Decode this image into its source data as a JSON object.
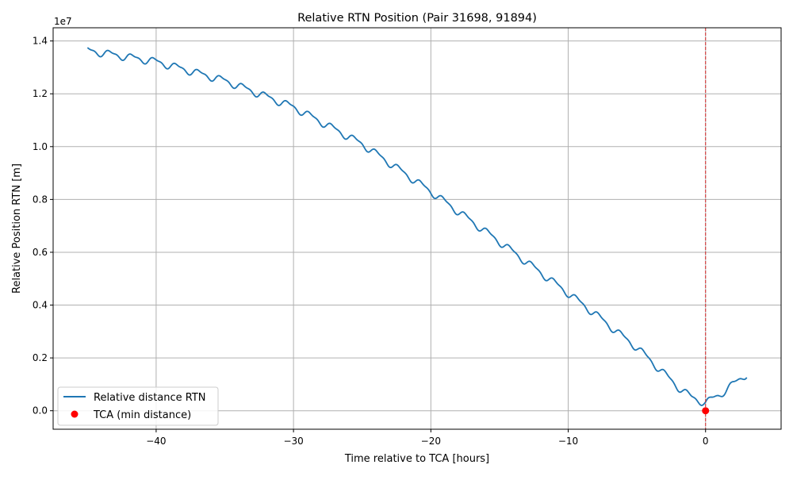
{
  "chart_data": {
    "type": "line",
    "title": "Relative RTN Position (Pair 31698, 91894)",
    "xlabel": "Time relative to TCA [hours]",
    "ylabel": "Relative Position RTN [m]",
    "y_offset_label": "1e7",
    "xlim": [
      -47.5,
      5.5
    ],
    "ylim": [
      -0.07,
      1.45
    ],
    "x_ticks": [
      -40,
      -30,
      -20,
      -10,
      0
    ],
    "x_tick_labels": [
      "−40",
      "−30",
      "−20",
      "−10",
      "0"
    ],
    "y_ticks": [
      0.0,
      0.2,
      0.4,
      0.6,
      0.8,
      1.0,
      1.2,
      1.4
    ],
    "y_tick_labels": [
      "0.0",
      "0.2",
      "0.4",
      "0.6",
      "0.8",
      "1.0",
      "1.2",
      "1.4"
    ],
    "grid": true,
    "legend_position": "lower-left",
    "series": [
      {
        "name": "Relative distance RTN",
        "color": "#1f77b4",
        "x_start": -45,
        "x_end": 3,
        "trend": [
          [
            -45,
            1.364
          ],
          [
            -40,
            1.322
          ],
          [
            -35,
            1.25
          ],
          [
            -30,
            1.15
          ],
          [
            -25,
            1.01
          ],
          [
            -20,
            0.83
          ],
          [
            -15,
            0.64
          ],
          [
            -10,
            0.445
          ],
          [
            -8,
            0.365
          ],
          [
            -6,
            0.28
          ],
          [
            -5,
            0.24
          ],
          [
            -4,
            0.19
          ],
          [
            -3,
            0.14
          ],
          [
            -2,
            0.09
          ],
          [
            -1,
            0.05
          ],
          [
            0,
            0.03
          ],
          [
            1,
            0.06
          ],
          [
            2,
            0.1
          ],
          [
            3,
            0.14
          ]
        ],
        "oscillation_amplitude_1e7": 0.012,
        "oscillation_period_hours": 1.62
      }
    ],
    "markers": [
      {
        "name": "TCA (min distance)",
        "x": 0,
        "y": 0.0,
        "color": "#ff0000"
      }
    ],
    "vertical_lines": [
      {
        "x": 0,
        "color": "#d62728",
        "style": "dashed"
      }
    ]
  }
}
